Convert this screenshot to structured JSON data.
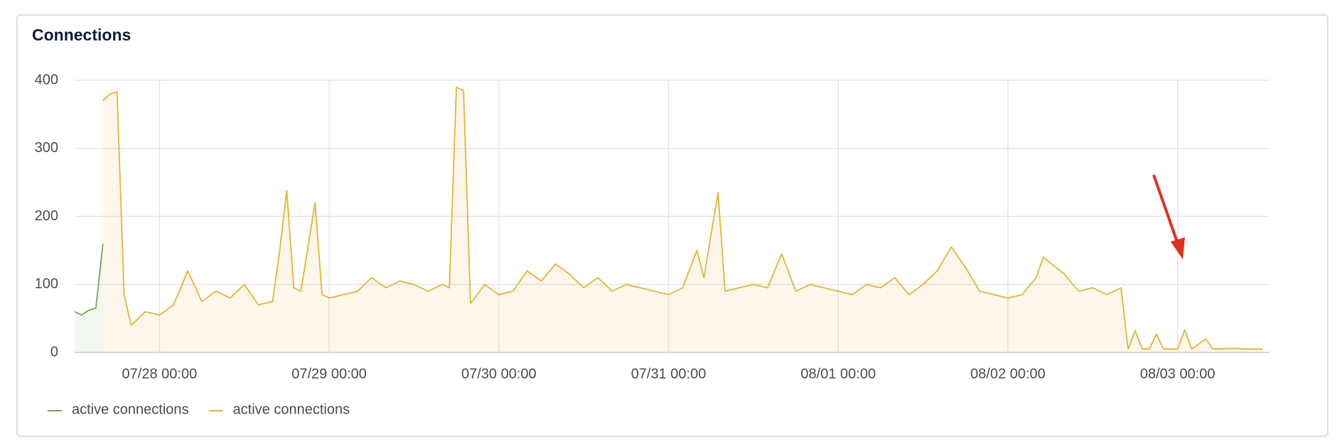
{
  "chart_data": {
    "type": "line",
    "title": "Connections",
    "xlim": [
      "07/27 12:00",
      "08/03 13:00"
    ],
    "xticks": [
      "07/28 00:00",
      "07/29 00:00",
      "07/30 00:00",
      "07/31 00:00",
      "08/01 00:00",
      "08/02 00:00",
      "08/03 00:00"
    ],
    "ylim": [
      0,
      400
    ],
    "yticks": [
      0,
      100,
      200,
      300,
      400
    ],
    "grid": true,
    "series": [
      {
        "name": "active connections",
        "color": "#73a857",
        "x": [
          "07/27 12:00",
          "07/27 13:00",
          "07/27 14:00",
          "07/27 15:00",
          "07/27 16:00"
        ],
        "values": [
          60,
          55,
          62,
          65,
          160
        ]
      },
      {
        "name": "active connections",
        "color": "#e6b333",
        "x": [
          "07/27 16:00",
          "07/27 17:00",
          "07/27 18:00",
          "07/27 19:00",
          "07/27 20:00",
          "07/27 22:00",
          "07/28 00:00",
          "07/28 02:00",
          "07/28 04:00",
          "07/28 06:00",
          "07/28 08:00",
          "07/28 10:00",
          "07/28 12:00",
          "07/28 14:00",
          "07/28 16:00",
          "07/28 17:00",
          "07/28 18:00",
          "07/28 19:00",
          "07/28 20:00",
          "07/28 22:00",
          "07/28 23:00",
          "07/29 00:00",
          "07/29 02:00",
          "07/29 04:00",
          "07/29 06:00",
          "07/29 08:00",
          "07/29 10:00",
          "07/29 12:00",
          "07/29 14:00",
          "07/29 16:00",
          "07/29 17:00",
          "07/29 18:00",
          "07/29 19:00",
          "07/29 20:00",
          "07/29 22:00",
          "07/30 00:00",
          "07/30 02:00",
          "07/30 04:00",
          "07/30 06:00",
          "07/30 08:00",
          "07/30 10:00",
          "07/30 12:00",
          "07/30 14:00",
          "07/30 16:00",
          "07/30 18:00",
          "07/30 20:00",
          "07/30 22:00",
          "07/31 00:00",
          "07/31 02:00",
          "07/31 04:00",
          "07/31 05:00",
          "07/31 07:00",
          "07/31 08:00",
          "07/31 10:00",
          "07/31 12:00",
          "07/31 14:00",
          "07/31 16:00",
          "07/31 18:00",
          "07/31 20:00",
          "07/31 22:00",
          "08/01 00:00",
          "08/01 02:00",
          "08/01 04:00",
          "08/01 06:00",
          "08/01 08:00",
          "08/01 10:00",
          "08/01 12:00",
          "08/01 14:00",
          "08/01 16:00",
          "08/01 18:00",
          "08/01 20:00",
          "08/01 22:00",
          "08/02 00:00",
          "08/02 02:00",
          "08/02 04:00",
          "08/02 05:00",
          "08/02 08:00",
          "08/02 10:00",
          "08/02 12:00",
          "08/02 14:00",
          "08/02 16:00",
          "08/02 17:00",
          "08/02 18:00",
          "08/02 19:00",
          "08/02 20:00",
          "08/02 21:00",
          "08/02 22:00",
          "08/03 00:00",
          "08/03 01:00",
          "08/03 02:00",
          "08/03 04:00",
          "08/03 05:00",
          "08/03 08:00",
          "08/03 10:00",
          "08/03 12:00"
        ],
        "values": [
          370,
          380,
          383,
          85,
          40,
          60,
          55,
          70,
          120,
          75,
          90,
          80,
          100,
          70,
          75,
          150,
          238,
          95,
          90,
          220,
          85,
          80,
          85,
          90,
          110,
          95,
          105,
          100,
          90,
          100,
          95,
          390,
          385,
          72,
          100,
          85,
          90,
          120,
          105,
          130,
          115,
          95,
          110,
          90,
          100,
          95,
          90,
          85,
          95,
          150,
          110,
          235,
          90,
          95,
          100,
          95,
          145,
          90,
          100,
          95,
          90,
          85,
          100,
          95,
          110,
          85,
          100,
          120,
          155,
          125,
          90,
          85,
          80,
          85,
          110,
          140,
          115,
          90,
          95,
          85,
          95,
          5,
          32,
          5,
          5,
          27,
          5,
          5,
          33,
          5,
          20,
          5,
          6,
          5,
          5
        ]
      }
    ]
  }
}
